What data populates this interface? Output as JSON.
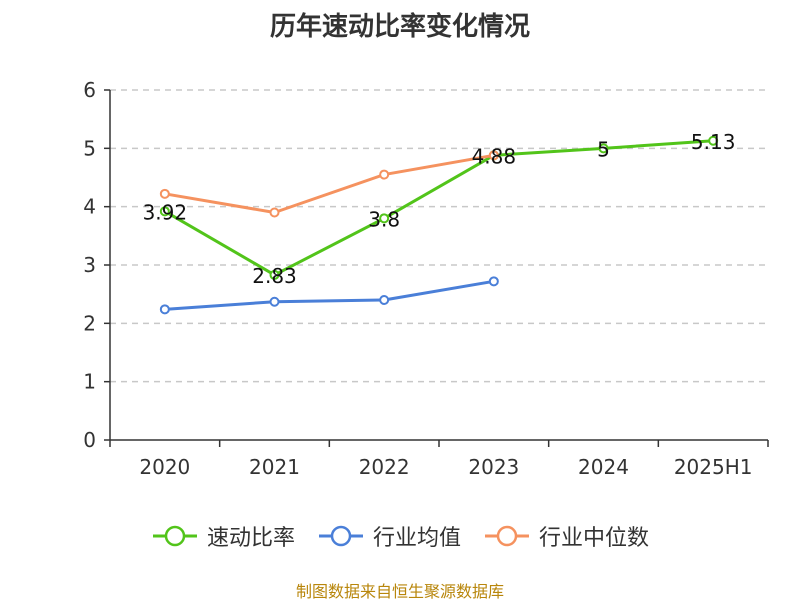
{
  "chart_data": {
    "type": "line",
    "title": "历年速动比率变化情况",
    "categories": [
      "2020",
      "2021",
      "2022",
      "2023",
      "2024",
      "2025H1"
    ],
    "ylim": [
      0,
      6
    ],
    "yticks": [
      0,
      1,
      2,
      3,
      4,
      5,
      6
    ],
    "grid": true,
    "legend_position": "bottom",
    "series": [
      {
        "name": "速动比率",
        "color": "#52c41a",
        "values": [
          3.92,
          2.83,
          3.8,
          4.88,
          5,
          5.13
        ],
        "labels": [
          "3.92",
          "2.83",
          "3.8",
          "4.88",
          "5",
          "5.13"
        ]
      },
      {
        "name": "行业均值",
        "color": "#4a7fd8",
        "values": [
          2.24,
          2.37,
          2.4,
          2.72,
          null,
          null
        ]
      },
      {
        "name": "行业中位数",
        "color": "#f5925f",
        "values": [
          4.22,
          3.9,
          4.55,
          4.88,
          null,
          null
        ]
      }
    ]
  },
  "source_note": "制图数据来自恒生聚源数据库"
}
